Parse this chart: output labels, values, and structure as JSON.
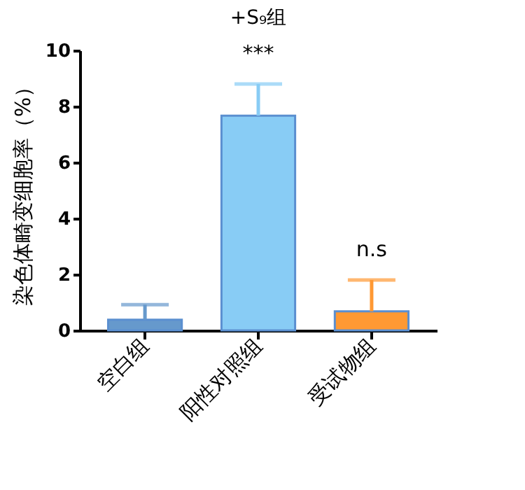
{
  "chart_data": {
    "type": "bar",
    "title": "+S₉组",
    "ylabel": "染色体畸变细胞率（%）",
    "categories": [
      "空白组",
      "阳性对照组",
      "受试物组"
    ],
    "values": [
      0.38,
      7.67,
      0.68
    ],
    "colors": [
      "#6699cc",
      "#88ccf5",
      "#ff9933"
    ],
    "errors": [
      [
        0.38,
        0.92
      ],
      [
        7.67,
        8.8
      ],
      [
        0.68,
        1.8
      ]
    ],
    "annotations": [
      {
        "text": "***",
        "x": "阳性对照组",
        "y": 8.8
      },
      {
        "text": "n.s",
        "x": "受试物组",
        "y": 1.8
      }
    ],
    "ylim": [
      0,
      10
    ],
    "yticks": [
      0,
      2,
      4,
      6,
      8,
      10
    ],
    "grid": false
  }
}
